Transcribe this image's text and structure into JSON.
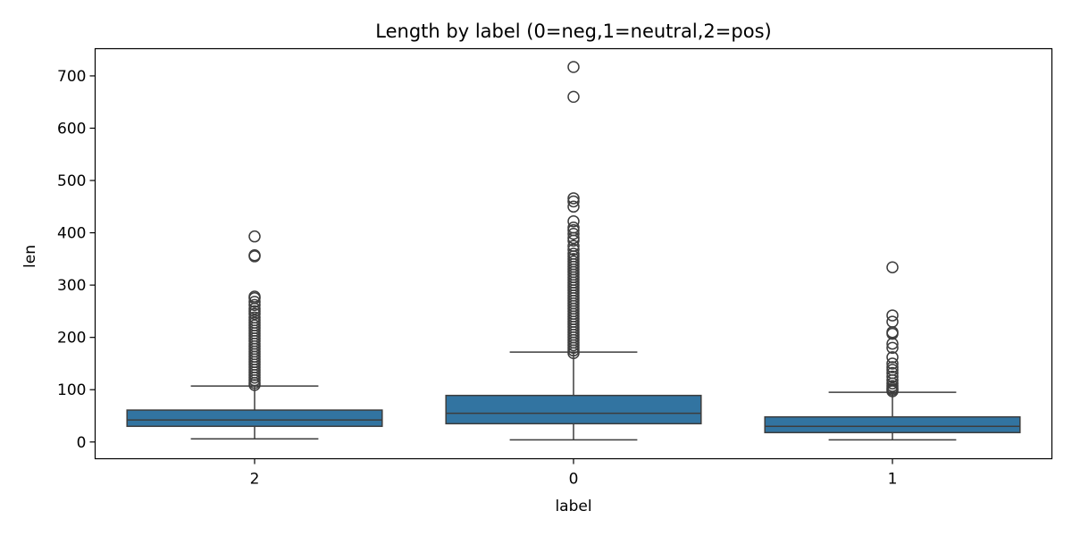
{
  "chart_data": {
    "type": "box",
    "title": "Length by label (0=neg,1=neutral,2=pos)",
    "xlabel": "label",
    "ylabel": "len",
    "categories": [
      "2",
      "0",
      "1"
    ],
    "ylim": [
      -32,
      752
    ],
    "yticks": [
      0,
      100,
      200,
      300,
      400,
      500,
      600,
      700
    ],
    "box_color": "#3274a1",
    "line_color": "#3d3d3d",
    "boxes": [
      {
        "label": "2",
        "whisker_low": 6,
        "q1": 30,
        "median": 42,
        "q3": 61,
        "whisker_high": 107,
        "outliers": [
          109,
          113,
          118,
          123,
          128,
          133,
          138,
          143,
          148,
          153,
          158,
          163,
          168,
          173,
          178,
          183,
          188,
          193,
          198,
          203,
          208,
          213,
          218,
          223,
          228,
          233,
          238,
          245,
          250,
          255,
          262,
          268,
          275,
          278,
          355,
          357,
          393
        ]
      },
      {
        "label": "0",
        "whisker_low": 4,
        "q1": 35,
        "median": 55,
        "q3": 89,
        "whisker_high": 172,
        "outliers": [
          170,
          175,
          180,
          185,
          190,
          195,
          200,
          205,
          210,
          215,
          220,
          225,
          230,
          235,
          240,
          245,
          250,
          255,
          260,
          265,
          270,
          275,
          280,
          285,
          290,
          295,
          300,
          305,
          310,
          315,
          320,
          325,
          330,
          335,
          340,
          345,
          350,
          355,
          360,
          368,
          375,
          385,
          390,
          398,
          405,
          410,
          422,
          450,
          460,
          466,
          660,
          717
        ]
      },
      {
        "label": "1",
        "whisker_low": 4,
        "q1": 18,
        "median": 30,
        "q3": 48,
        "whisker_high": 95,
        "outliers": [
          97,
          100,
          103,
          107,
          112,
          118,
          125,
          132,
          138,
          143,
          150,
          162,
          180,
          188,
          207,
          210,
          230,
          242,
          334
        ]
      }
    ]
  }
}
